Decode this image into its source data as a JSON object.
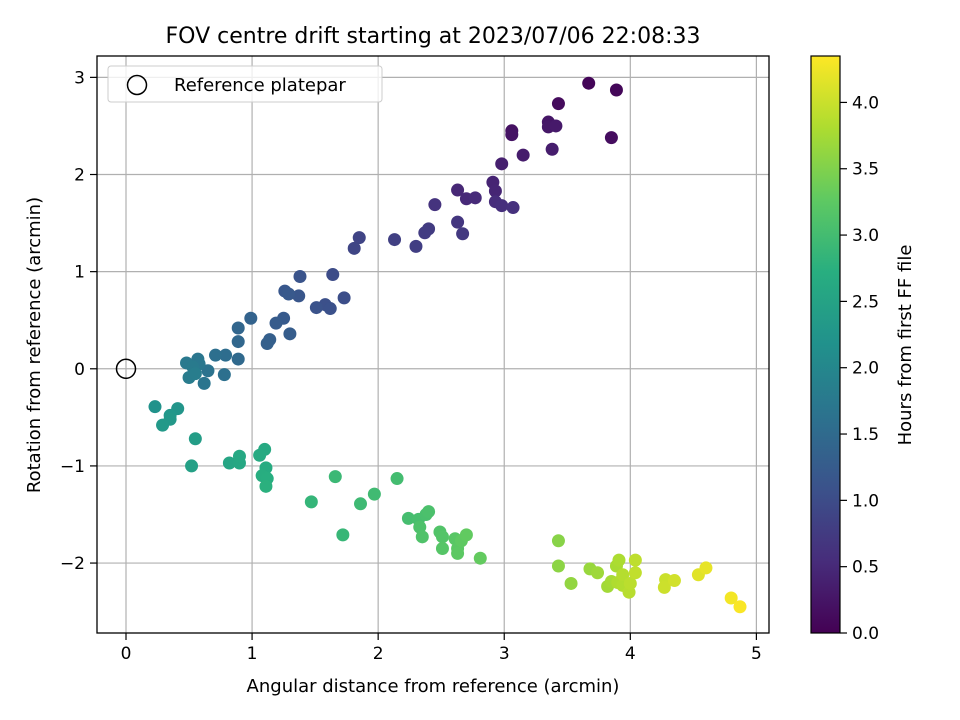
{
  "chart_data": {
    "type": "scatter",
    "title": "FOV centre drift starting at 2023/07/06 22:08:33",
    "xlabel": "Angular distance from reference (arcmin)",
    "ylabel": "Rotation from reference (arcmin)",
    "xlim": [
      -0.23,
      5.1
    ],
    "ylim": [
      -2.72,
      3.22
    ],
    "xticks": [
      0,
      1,
      2,
      3,
      4,
      5
    ],
    "yticks": [
      -2,
      -1,
      0,
      1,
      2,
      3
    ],
    "grid": true,
    "legend": {
      "placement": "upper-left",
      "entries": [
        "Reference platepar"
      ]
    },
    "reference_point": {
      "x": 0,
      "y": 0
    },
    "colorbar": {
      "label": "Hours from first FF file",
      "range": [
        0.0,
        4.35
      ],
      "ticks": [
        0.0,
        0.5,
        1.0,
        1.5,
        2.0,
        2.5,
        3.0,
        3.5,
        4.0
      ],
      "tick_labels": [
        "0.0",
        "0.5",
        "1.0",
        "1.5",
        "2.0",
        "2.5",
        "3.0",
        "3.5",
        "4.0"
      ],
      "colormap": "viridis"
    },
    "points": [
      [
        3.67,
        2.94,
        0.05
      ],
      [
        3.89,
        2.87,
        0.07
      ],
      [
        3.43,
        2.73,
        0.12
      ],
      [
        3.85,
        2.38,
        0.15
      ],
      [
        3.06,
        2.45,
        0.2
      ],
      [
        3.06,
        2.41,
        0.22
      ],
      [
        3.35,
        2.54,
        0.25
      ],
      [
        3.35,
        2.49,
        0.27
      ],
      [
        3.41,
        2.5,
        0.3
      ],
      [
        3.15,
        2.2,
        0.33
      ],
      [
        3.38,
        2.26,
        0.35
      ],
      [
        2.98,
        2.11,
        0.38
      ],
      [
        2.91,
        1.92,
        0.43
      ],
      [
        2.93,
        1.83,
        0.45
      ],
      [
        2.63,
        1.84,
        0.48
      ],
      [
        2.7,
        1.75,
        0.5
      ],
      [
        2.77,
        1.76,
        0.52
      ],
      [
        2.93,
        1.72,
        0.55
      ],
      [
        2.98,
        1.68,
        0.57
      ],
      [
        3.07,
        1.66,
        0.6
      ],
      [
        2.45,
        1.69,
        0.63
      ],
      [
        2.63,
        1.51,
        0.68
      ],
      [
        2.67,
        1.39,
        0.72
      ],
      [
        2.4,
        1.44,
        0.75
      ],
      [
        2.37,
        1.4,
        0.77
      ],
      [
        2.3,
        1.26,
        0.8
      ],
      [
        2.13,
        1.33,
        0.83
      ],
      [
        1.85,
        1.35,
        0.88
      ],
      [
        1.81,
        1.24,
        0.9
      ],
      [
        1.64,
        0.97,
        1.0
      ],
      [
        1.73,
        0.73,
        1.03
      ],
      [
        1.58,
        0.66,
        1.06
      ],
      [
        1.62,
        0.62,
        1.08
      ],
      [
        1.51,
        0.63,
        1.1
      ],
      [
        1.38,
        0.95,
        1.12
      ],
      [
        1.37,
        0.75,
        1.15
      ],
      [
        1.26,
        0.8,
        1.18
      ],
      [
        1.29,
        0.77,
        1.2
      ],
      [
        1.25,
        0.52,
        1.22
      ],
      [
        1.19,
        0.47,
        1.25
      ],
      [
        1.3,
        0.36,
        1.28
      ],
      [
        1.14,
        0.3,
        1.3
      ],
      [
        1.12,
        0.26,
        1.32
      ],
      [
        0.99,
        0.52,
        1.38
      ],
      [
        0.89,
        0.42,
        1.42
      ],
      [
        0.89,
        0.28,
        1.45
      ],
      [
        0.89,
        0.1,
        1.48
      ],
      [
        0.79,
        0.14,
        1.55
      ],
      [
        0.71,
        0.14,
        1.58
      ],
      [
        0.78,
        -0.06,
        1.6
      ],
      [
        0.65,
        -0.02,
        1.65
      ],
      [
        0.62,
        -0.15,
        1.68
      ],
      [
        0.57,
        0.1,
        1.7
      ],
      [
        0.58,
        0.05,
        1.72
      ],
      [
        0.48,
        0.06,
        1.75
      ],
      [
        0.53,
        0.02,
        1.78
      ],
      [
        0.5,
        -0.09,
        1.8
      ],
      [
        0.55,
        -0.05,
        1.83
      ],
      [
        0.23,
        -0.39,
        2.2
      ],
      [
        0.41,
        -0.41,
        2.25
      ],
      [
        0.35,
        -0.48,
        2.28
      ],
      [
        0.35,
        -0.52,
        2.3
      ],
      [
        0.29,
        -0.58,
        2.32
      ],
      [
        0.55,
        -0.72,
        2.4
      ],
      [
        0.52,
        -1.0,
        2.45
      ],
      [
        0.82,
        -0.97,
        2.55
      ],
      [
        0.9,
        -0.97,
        2.58
      ],
      [
        0.9,
        -0.9,
        2.6
      ],
      [
        1.1,
        -0.83,
        2.62
      ],
      [
        1.06,
        -0.89,
        2.65
      ],
      [
        1.11,
        -1.02,
        2.67
      ],
      [
        1.08,
        -1.1,
        2.7
      ],
      [
        1.12,
        -1.13,
        2.72
      ],
      [
        1.11,
        -1.21,
        2.75
      ],
      [
        1.47,
        -1.37,
        2.85
      ],
      [
        1.72,
        -1.71,
        2.88
      ],
      [
        1.66,
        -1.11,
        2.92
      ],
      [
        1.86,
        -1.39,
        2.95
      ],
      [
        1.97,
        -1.29,
        2.97
      ],
      [
        2.15,
        -1.13,
        3.0
      ],
      [
        2.24,
        -1.54,
        3.02
      ],
      [
        2.32,
        -1.55,
        3.04
      ],
      [
        2.38,
        -1.5,
        3.06
      ],
      [
        2.4,
        -1.47,
        3.08
      ],
      [
        2.33,
        -1.63,
        3.1
      ],
      [
        2.35,
        -1.73,
        3.12
      ],
      [
        2.49,
        -1.68,
        3.14
      ],
      [
        2.51,
        -1.73,
        3.16
      ],
      [
        2.51,
        -1.85,
        3.18
      ],
      [
        2.61,
        -1.75,
        3.2
      ],
      [
        2.63,
        -1.85,
        3.22
      ],
      [
        2.63,
        -1.9,
        3.24
      ],
      [
        2.66,
        -1.77,
        3.26
      ],
      [
        2.7,
        -1.71,
        3.28
      ],
      [
        2.81,
        -1.95,
        3.3
      ],
      [
        3.43,
        -1.77,
        3.55
      ],
      [
        3.43,
        -2.03,
        3.58
      ],
      [
        3.53,
        -2.21,
        3.62
      ],
      [
        3.68,
        -2.06,
        3.66
      ],
      [
        3.74,
        -2.1,
        3.7
      ],
      [
        3.82,
        -2.24,
        3.73
      ],
      [
        3.85,
        -2.19,
        3.75
      ],
      [
        3.89,
        -2.03,
        3.77
      ],
      [
        3.91,
        -1.97,
        3.8
      ],
      [
        3.9,
        -2.2,
        3.82
      ],
      [
        3.94,
        -2.23,
        3.84
      ],
      [
        3.94,
        -2.12,
        3.86
      ],
      [
        3.99,
        -2.3,
        3.88
      ],
      [
        4.0,
        -2.21,
        3.9
      ],
      [
        4.04,
        -1.97,
        3.92
      ],
      [
        4.04,
        -2.1,
        3.94
      ],
      [
        4.28,
        -2.17,
        4.0
      ],
      [
        4.27,
        -2.25,
        4.02
      ],
      [
        4.35,
        -2.18,
        4.05
      ],
      [
        4.54,
        -2.12,
        4.15
      ],
      [
        4.6,
        -2.05,
        4.2
      ],
      [
        4.8,
        -2.36,
        4.28
      ],
      [
        4.87,
        -2.45,
        4.32
      ]
    ]
  }
}
